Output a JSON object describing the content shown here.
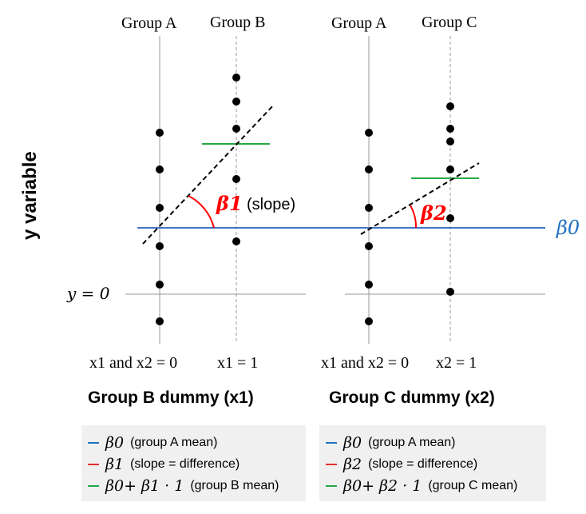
{
  "panels": [
    {
      "col_labels": [
        "Group A",
        "Group B"
      ],
      "x_labels": {
        "left": "x1 and x2 = 0",
        "right": "x1 = 1"
      },
      "dummy_title": "Group B dummy (x1)",
      "slope_symbol": "β1",
      "slope_word": "(slope)",
      "legend": [
        {
          "color": "#1f6fc0",
          "symbol": "β0",
          "text": "(group A mean)"
        },
        {
          "color": "#e03030",
          "symbol": "β1",
          "text": "(slope = difference)"
        },
        {
          "color": "#22aa44",
          "symbol": "β0+ β1 · 1",
          "text": "(group B mean)"
        }
      ]
    },
    {
      "col_labels": [
        "Group A",
        "Group C"
      ],
      "x_labels": {
        "left": "x1 and x2 = 0",
        "right": "x2 = 1"
      },
      "dummy_title": "Group C dummy (x2)",
      "slope_symbol": "β2",
      "legend": [
        {
          "color": "#1f6fc0",
          "symbol": "β0",
          "text": "(group A mean)"
        },
        {
          "color": "#e03030",
          "symbol": "β2",
          "text": "(slope = difference)"
        },
        {
          "color": "#22aa44",
          "symbol": "β0+ β2 · 1",
          "text": "(group C mean)"
        }
      ]
    }
  ],
  "y_axis_label": "y variable",
  "zero_label": "y = 0",
  "intercept_label": "β0",
  "colors": {
    "intercept": "#1f6fc0",
    "group_mean": "#22aa44",
    "slope_arc": "#ff0000"
  }
}
